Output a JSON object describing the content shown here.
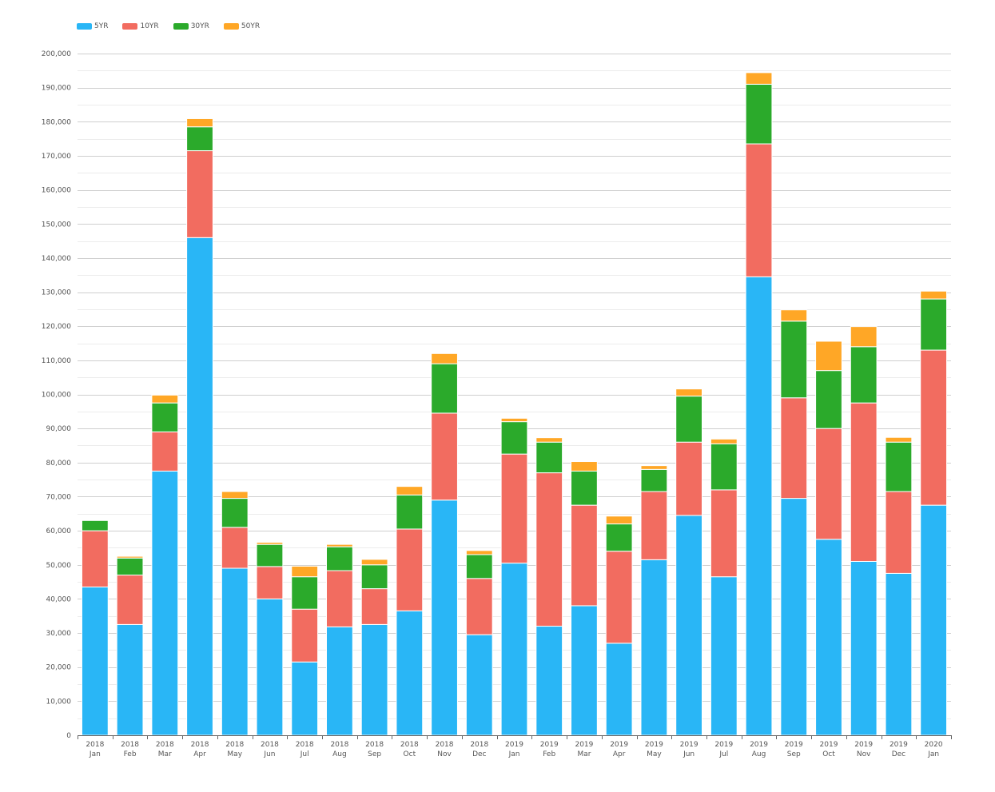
{
  "chart_data": {
    "type": "bar",
    "stacked": true,
    "categories": [
      [
        "2018",
        "Jan"
      ],
      [
        "2018",
        "Feb"
      ],
      [
        "2018",
        "Mar"
      ],
      [
        "2018",
        "Apr"
      ],
      [
        "2018",
        "May"
      ],
      [
        "2018",
        "Jun"
      ],
      [
        "2018",
        "Jul"
      ],
      [
        "2018",
        "Aug"
      ],
      [
        "2018",
        "Sep"
      ],
      [
        "2018",
        "Oct"
      ],
      [
        "2018",
        "Nov"
      ],
      [
        "2018",
        "Dec"
      ],
      [
        "2019",
        "Jan"
      ],
      [
        "2019",
        "Feb"
      ],
      [
        "2019",
        "Mar"
      ],
      [
        "2019",
        "Apr"
      ],
      [
        "2019",
        "May"
      ],
      [
        "2019",
        "Jun"
      ],
      [
        "2019",
        "Jul"
      ],
      [
        "2019",
        "Aug"
      ],
      [
        "2019",
        "Sep"
      ],
      [
        "2019",
        "Oct"
      ],
      [
        "2019",
        "Nov"
      ],
      [
        "2019",
        "Dec"
      ],
      [
        "2020",
        "Jan"
      ]
    ],
    "series": [
      {
        "name": "5YR",
        "color": "#29b6f6",
        "values": [
          43500,
          32500,
          77500,
          146000,
          49000,
          40000,
          21500,
          31800,
          32500,
          36500,
          69000,
          29500,
          50500,
          32000,
          38000,
          27000,
          51500,
          64500,
          46500,
          134500,
          69500,
          57500,
          51000,
          47500,
          67500
        ]
      },
      {
        "name": "10YR",
        "color": "#f26c60",
        "values": [
          16500,
          14500,
          11500,
          25500,
          12000,
          9500,
          15500,
          16500,
          10500,
          24000,
          25500,
          16500,
          32000,
          45000,
          29500,
          27000,
          20000,
          21500,
          25500,
          39000,
          29500,
          32500,
          46500,
          24000,
          45500
        ]
      },
      {
        "name": "30YR",
        "color": "#2baa2b",
        "values": [
          3000,
          5000,
          8500,
          7000,
          8500,
          6500,
          9500,
          7000,
          7000,
          10000,
          14500,
          7000,
          9500,
          9000,
          10000,
          8000,
          6500,
          13500,
          13500,
          17500,
          22500,
          17000,
          16500,
          14500,
          15000
        ]
      },
      {
        "name": "50YR",
        "color": "#ffa726",
        "values": [
          0,
          500,
          2300,
          2400,
          2000,
          600,
          3100,
          700,
          1600,
          2500,
          3000,
          1200,
          1000,
          1300,
          2800,
          2300,
          1100,
          2100,
          1400,
          3400,
          3300,
          8600,
          5900,
          1400,
          2300
        ]
      }
    ],
    "ylim": [
      0,
      200000
    ],
    "ytick_step": 10000,
    "yticks": [
      "0",
      "10,000",
      "20,000",
      "30,000",
      "40,000",
      "50,000",
      "60,000",
      "70,000",
      "80,000",
      "90,000",
      "100,000",
      "110,000",
      "120,000",
      "130,000",
      "140,000",
      "150,000",
      "160,000",
      "170,000",
      "180,000",
      "190,000",
      "200,000"
    ],
    "grid": true,
    "legend_position": "top-left"
  }
}
